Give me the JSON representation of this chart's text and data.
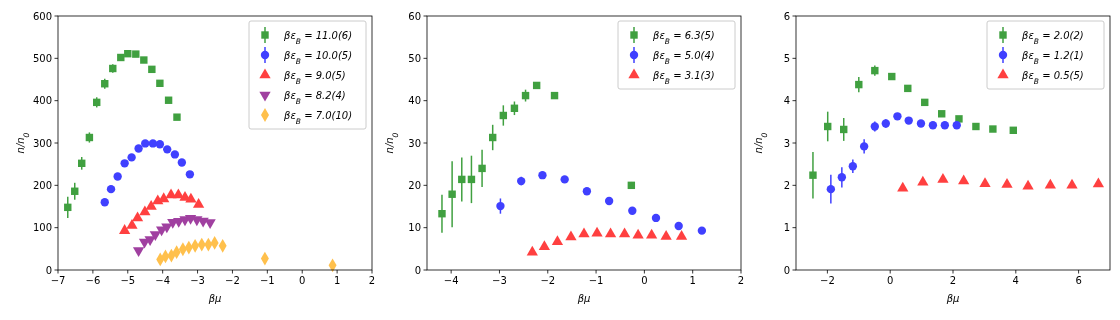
{
  "chart_data": [
    {
      "type": "scatter",
      "xlabel": "βμ",
      "ylabel": "n/n$_{0}$",
      "xlim": [
        -7,
        2
      ],
      "xticks": [
        -7,
        -6,
        -5,
        -4,
        -3,
        -2,
        -1,
        0,
        1,
        2
      ],
      "ylim": [
        0,
        600
      ],
      "yticks": [
        0,
        100,
        200,
        300,
        400,
        500,
        600
      ],
      "legend": "top right",
      "series": [
        {
          "name": "βε$_{B}$ = 11.0(6)",
          "color": "#40a040",
          "marker": "square",
          "x": [
            -6.72,
            -6.52,
            -6.32,
            -6.1,
            -5.89,
            -5.66,
            -5.43,
            -5.2,
            -5.0,
            -4.77,
            -4.54,
            -4.31,
            -4.08,
            -3.83,
            -3.59
          ],
          "values": [
            148,
            186,
            252,
            313,
            396,
            440,
            476,
            502,
            511,
            510,
            496,
            474,
            441,
            401,
            361
          ],
          "errors": [
            25,
            20,
            15,
            12,
            12,
            12,
            10,
            8,
            6,
            null,
            null,
            null,
            null,
            null,
            null
          ]
        },
        {
          "name": "βε$_{B}$ = 10.0(5)",
          "color": "#4040ff",
          "marker": "circle",
          "x": [
            -5.66,
            -5.48,
            -5.29,
            -5.09,
            -4.89,
            -4.69,
            -4.5,
            -4.28,
            -4.08,
            -3.87,
            -3.65,
            -3.45,
            -3.22
          ],
          "values": [
            160,
            191,
            221,
            252,
            266,
            287,
            299,
            299,
            297,
            285,
            273,
            254,
            226
          ],
          "errors": [
            8,
            8,
            6,
            null,
            null,
            null,
            null,
            null,
            null,
            null,
            null,
            null,
            null
          ]
        },
        {
          "name": "βε$_{B}$ = 9.0(5)",
          "color": "#ff4040",
          "marker": "triangle",
          "x": [
            -5.09,
            -4.88,
            -4.72,
            -4.51,
            -4.33,
            -4.14,
            -3.97,
            -3.76,
            -3.55,
            -3.36,
            -3.19,
            -2.97
          ],
          "values": [
            93,
            105,
            123,
            137,
            150,
            163,
            168,
            177,
            177,
            171,
            167,
            155
          ]
        },
        {
          "name": "βε$_{B}$ = 8.2(4)",
          "color": "#a040a0",
          "marker": "triangle-down",
          "x": [
            -4.69,
            -4.52,
            -4.36,
            -4.21,
            -4.03,
            -3.88,
            -3.71,
            -3.54,
            -3.36,
            -3.2,
            -3.02,
            -2.84,
            -2.64
          ],
          "values": [
            46,
            66,
            72,
            84,
            95,
            102,
            113,
            115,
            119,
            122,
            119,
            116,
            112
          ]
        },
        {
          "name": "βε$_{B}$ = 7.0(10)",
          "color": "#ffc04c",
          "marker": "diamond",
          "x": [
            -4.07,
            -3.92,
            -3.75,
            -3.6,
            -3.42,
            -3.25,
            -3.07,
            -2.88,
            -2.69,
            -2.51,
            -2.28,
            -1.07,
            0.87
          ],
          "values": [
            25,
            32,
            34,
            42,
            49,
            53,
            57,
            60,
            60,
            64,
            57,
            27,
            11
          ]
        }
      ]
    },
    {
      "type": "scatter",
      "xlabel": "βμ",
      "ylabel": "n/n$_{0}$",
      "xlim": [
        -4.5,
        2
      ],
      "xticks": [
        -4,
        -3,
        -2,
        -1,
        0,
        1,
        2
      ],
      "ylim": [
        0,
        60
      ],
      "yticks": [
        0,
        10,
        20,
        30,
        40,
        50,
        60
      ],
      "legend": "top right",
      "series": [
        {
          "name": "βε$_{B}$ = 6.3(5)",
          "color": "#40a040",
          "marker": "square",
          "x": [
            -4.19,
            -3.98,
            -3.78,
            -3.58,
            -3.36,
            -3.14,
            -2.92,
            -2.69,
            -2.46,
            -2.23,
            -1.86,
            -0.27
          ],
          "values": [
            13.3,
            17.9,
            21.4,
            21.4,
            24.0,
            31.3,
            36.5,
            38.2,
            41.2,
            43.6,
            41.2,
            20.0
          ],
          "errors": [
            4.5,
            7.8,
            5.2,
            5.6,
            4.4,
            3.0,
            2.4,
            1.6,
            1.4,
            0.8,
            0.8,
            0.8
          ]
        },
        {
          "name": "βε$_{B}$ = 5.0(4)",
          "color": "#4040ff",
          "marker": "circle",
          "x": [
            -2.98,
            -2.55,
            -2.11,
            -1.65,
            -1.19,
            -0.73,
            -0.25,
            0.24,
            0.71,
            1.19
          ],
          "values": [
            15.1,
            21.0,
            22.4,
            21.4,
            18.6,
            16.3,
            14.0,
            12.3,
            10.4,
            9.3
          ],
          "errors": [
            1.8,
            1.0,
            0.8,
            null,
            null,
            null,
            null,
            null,
            null,
            null
          ]
        },
        {
          "name": "βε$_{B}$ = 3.1(3)",
          "color": "#ff4040",
          "marker": "triangle",
          "x": [
            -2.32,
            -2.07,
            -1.8,
            -1.52,
            -1.25,
            -0.98,
            -0.7,
            -0.41,
            -0.13,
            0.15,
            0.45,
            0.77
          ],
          "values": [
            4.2,
            5.5,
            6.7,
            7.8,
            8.5,
            8.7,
            8.5,
            8.5,
            8.2,
            8.2,
            7.9,
            7.9
          ]
        }
      ]
    },
    {
      "type": "scatter",
      "xlabel": "βμ",
      "ylabel": "n/n$_{0}$",
      "xlim": [
        -3,
        7
      ],
      "xticks": [
        -2,
        0,
        2,
        4,
        6
      ],
      "ylim": [
        0,
        6
      ],
      "yticks": [
        0,
        1,
        2,
        3,
        4,
        5,
        6
      ],
      "legend": "top right",
      "series": [
        {
          "name": "βε$_{B}$ = 2.0(2)",
          "color": "#40a040",
          "marker": "square",
          "x": [
            -2.46,
            -1.99,
            -1.48,
            -1.0,
            -0.49,
            0.05,
            0.56,
            1.1,
            1.64,
            2.19,
            2.73,
            3.27,
            3.92
          ],
          "values": [
            2.24,
            3.39,
            3.32,
            4.38,
            4.71,
            4.57,
            4.29,
            3.96,
            3.69,
            3.57,
            3.39,
            3.33,
            3.3
          ],
          "errors": [
            0.55,
            0.35,
            0.27,
            0.18,
            0.12,
            0.08,
            null,
            null,
            null,
            null,
            null,
            null,
            null
          ]
        },
        {
          "name": "βε$_{B}$ = 1.2(1)",
          "color": "#4040ff",
          "marker": "circle",
          "x": [
            -1.89,
            -1.54,
            -1.19,
            -0.83,
            -0.49,
            -0.14,
            0.23,
            0.59,
            0.98,
            1.36,
            1.74,
            2.12
          ],
          "values": [
            1.91,
            2.19,
            2.45,
            2.92,
            3.39,
            3.46,
            3.63,
            3.53,
            3.46,
            3.42,
            3.42,
            3.42
          ],
          "errors": [
            0.34,
            0.24,
            0.16,
            0.17,
            0.12,
            0.1,
            0.08,
            null,
            null,
            null,
            null,
            null
          ]
        },
        {
          "name": "βε$_{B}$ = 0.5(5)",
          "color": "#ff4040",
          "marker": "triangle",
          "x": [
            0.4,
            1.04,
            1.68,
            2.34,
            3.02,
            3.72,
            4.39,
            5.1,
            5.79,
            6.63
          ],
          "values": [
            1.93,
            2.07,
            2.14,
            2.1,
            2.04,
            2.02,
            1.98,
            2.0,
            2.0,
            2.03
          ]
        }
      ]
    }
  ]
}
